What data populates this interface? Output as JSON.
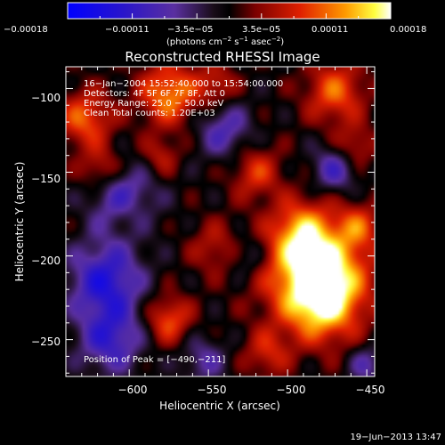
{
  "chart_data": {
    "type": "heatmap",
    "title": "Reconstructed RHESSI Image",
    "xlabel": "Heliocentric X (arcsec)",
    "ylabel": "Heliocentric Y (arcsec)",
    "xlim": [
      -640,
      -445
    ],
    "ylim": [
      -272,
      -87
    ],
    "xticks": [
      -600,
      -550,
      -500,
      -450
    ],
    "yticks": [
      -100,
      -150,
      -200,
      -250
    ],
    "xtick_labels": [
      "−600",
      "−550",
      "−500",
      "−450"
    ],
    "ytick_labels": [
      "−100",
      "−150",
      "−200",
      "−250"
    ],
    "colorbar": {
      "range": [
        -0.00018,
        0.00018
      ],
      "tick_labels": [
        "−0.00018",
        "−0.00011",
        "−3.5e−05",
        "3.5e−05",
        "0.00011",
        "0.00018"
      ],
      "label_main": "(photons cm",
      "label_exp1": "−2",
      "label_mid": " s",
      "label_exp2": "−1",
      "label_tail": " asec",
      "label_exp3": "−2",
      "label_end": ")"
    },
    "info_lines": [
      "16−Jan−2004 15:52:40.000 to 15:54:00.000",
      "Detectors: 4F 5F 6F 7F 8F, Att 0",
      "Energy Range: 25.0 − 50.0 keV",
      "Clean    Total counts: 1.20E+03"
    ],
    "peak_label": "Position of Peak = [−490,−211]",
    "peak": [
      -490,
      -211
    ],
    "blobs": [
      {
        "x": -482,
        "y": -208,
        "s": 22,
        "a": 1.6
      },
      {
        "x": -478,
        "y": -228,
        "s": 16,
        "a": 1.0
      },
      {
        "x": -492,
        "y": -185,
        "s": 12,
        "a": 0.7
      },
      {
        "x": -575,
        "y": -103,
        "s": 13,
        "a": 1.1
      },
      {
        "x": -545,
        "y": -98,
        "s": 9,
        "a": 0.6
      },
      {
        "x": -628,
        "y": -118,
        "s": 12,
        "a": 0.9
      },
      {
        "x": -618,
        "y": -148,
        "s": 9,
        "a": 0.6
      },
      {
        "x": -470,
        "y": -102,
        "s": 13,
        "a": 0.9
      },
      {
        "x": -458,
        "y": -135,
        "s": 9,
        "a": 0.6
      },
      {
        "x": -575,
        "y": -238,
        "s": 10,
        "a": 0.85
      },
      {
        "x": -520,
        "y": -150,
        "s": 11,
        "a": 0.7
      },
      {
        "x": -513,
        "y": -258,
        "s": 10,
        "a": 0.6
      },
      {
        "x": -546,
        "y": -195,
        "s": 11,
        "a": 0.5
      },
      {
        "x": -580,
        "y": -140,
        "s": 8,
        "a": 0.5
      },
      {
        "x": -600,
        "y": -175,
        "s": 10,
        "a": 0.5
      },
      {
        "x": -455,
        "y": -182,
        "s": 9,
        "a": 0.6
      },
      {
        "x": -603,
        "y": -168,
        "s": 14,
        "a": -1.0
      },
      {
        "x": -615,
        "y": -215,
        "s": 16,
        "a": -1.1
      },
      {
        "x": -612,
        "y": -250,
        "s": 14,
        "a": -0.9
      },
      {
        "x": -540,
        "y": -125,
        "s": 12,
        "a": -0.7
      },
      {
        "x": -470,
        "y": -148,
        "s": 10,
        "a": -0.8
      },
      {
        "x": -525,
        "y": -200,
        "s": 9,
        "a": -0.45
      },
      {
        "x": -553,
        "y": -262,
        "s": 10,
        "a": -0.55
      },
      {
        "x": -450,
        "y": -265,
        "s": 8,
        "a": -0.6
      }
    ]
  },
  "footer": {
    "timestamp": "19−Jun−2013 13:47"
  }
}
